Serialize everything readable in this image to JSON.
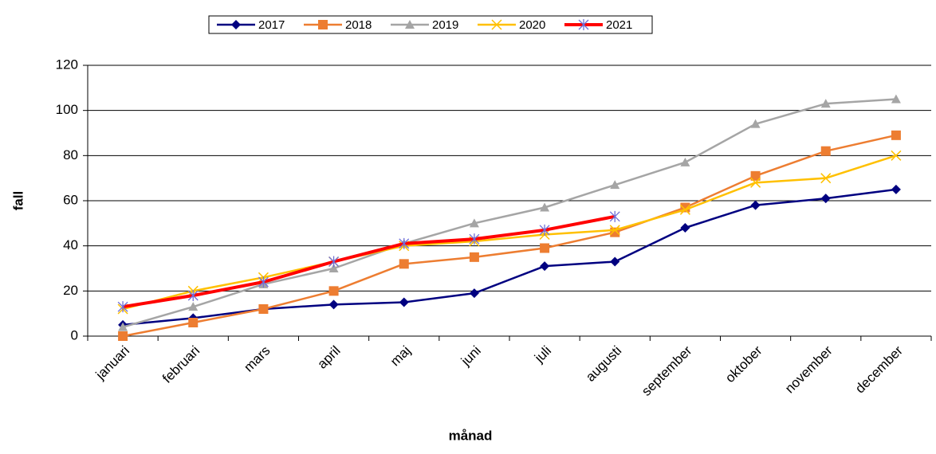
{
  "chart_data": {
    "type": "line",
    "x_label": "månad",
    "y_label": "fall",
    "categories": [
      "januari",
      "februari",
      "mars",
      "april",
      "maj",
      "juni",
      "juli",
      "augusti",
      "september",
      "oktober",
      "november",
      "december"
    ],
    "series": [
      {
        "name": "2017",
        "color": "#000080",
        "marker": "diamond",
        "values": [
          5,
          8,
          12,
          14,
          15,
          19,
          31,
          33,
          48,
          58,
          61,
          65
        ]
      },
      {
        "name": "2018",
        "color": "#ed7d31",
        "marker": "square",
        "values": [
          0,
          6,
          12,
          20,
          32,
          35,
          39,
          46,
          57,
          71,
          82,
          89
        ]
      },
      {
        "name": "2019",
        "color": "#a5a5a5",
        "marker": "triangle",
        "values": [
          4,
          13,
          23,
          30,
          41,
          50,
          57,
          67,
          77,
          94,
          103,
          105
        ]
      },
      {
        "name": "2020",
        "color": "#ffc000",
        "marker": "x",
        "values": [
          12,
          20,
          26,
          33,
          40,
          42,
          45,
          47,
          56,
          68,
          70,
          80
        ]
      },
      {
        "name": "2021",
        "color": "#ff0000",
        "marker": "star",
        "marker_color": "#6f6fd8",
        "values": [
          13,
          18,
          24,
          33,
          41,
          43,
          47,
          53,
          null,
          null,
          null,
          null
        ]
      }
    ],
    "ylim": [
      0,
      120
    ],
    "yticks": [
      0,
      20,
      40,
      60,
      80,
      100,
      120
    ],
    "grid": true,
    "legend": "top"
  }
}
